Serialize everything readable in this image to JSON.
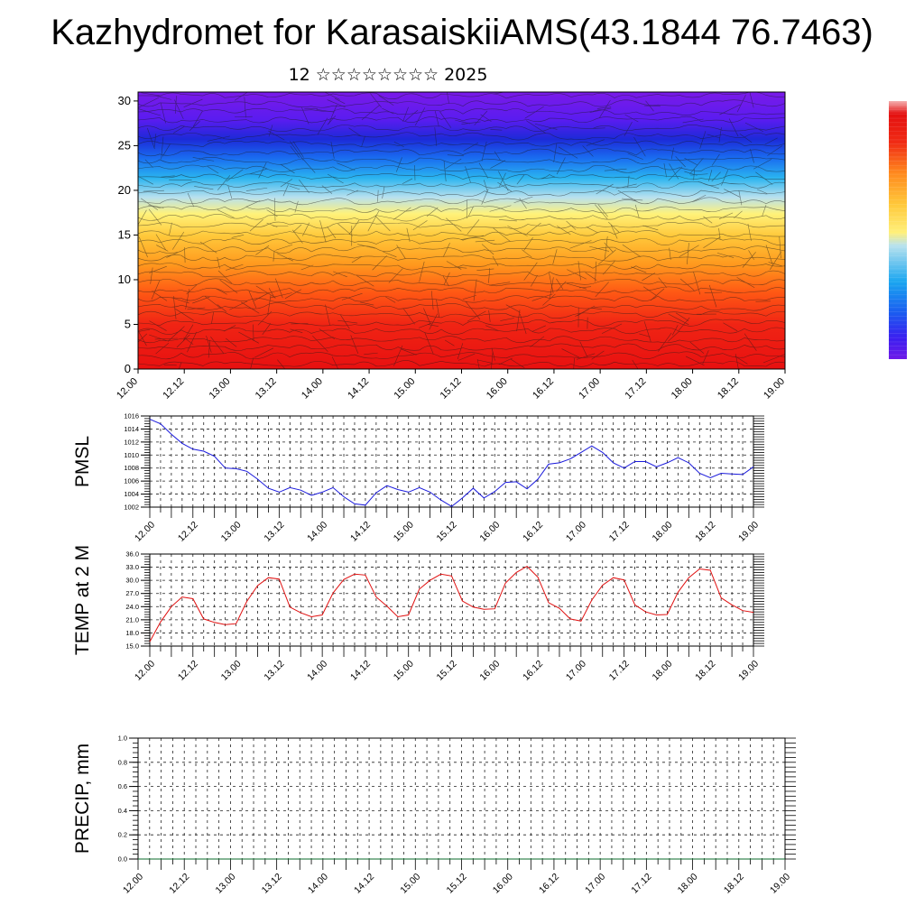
{
  "title": "Kazhydromet for KarasaiskiiAMS(43.1844 76.7463)",
  "subtitle": "12 ☆☆☆☆☆☆☆☆ 2025",
  "colors": {
    "pmsl_line": "#1a1adc",
    "temp_line": "#e01010",
    "precip_line": "#0a6b2a",
    "colorbar": [
      "#6f1ae8",
      "#3b1ef0",
      "#1a5cf0",
      "#1aa6f0",
      "#8fd2f0",
      "#fff07a",
      "#ffd23c",
      "#ffa51e",
      "#ff6a14",
      "#f02a14",
      "#e41010",
      "#f0a0a0"
    ]
  },
  "chart_data": [
    {
      "type": "heatmap",
      "x_ticks": [
        "12.00",
        "12.12",
        "13.00",
        "13.12",
        "14.00",
        "14.12",
        "15.00",
        "15.12",
        "16.00",
        "16.12",
        "17.00",
        "17.12",
        "18.00",
        "18.12",
        "19.00"
      ],
      "y_ticks": [
        "0",
        "5",
        "10",
        "15",
        "20",
        "25",
        "30"
      ],
      "ylim": [
        0,
        31
      ],
      "overlay": "wind-barbs",
      "colorbar": true
    },
    {
      "type": "line",
      "ylabel": "PMSL",
      "ylim": [
        1002,
        1016
      ],
      "y_ticks": [
        "1002",
        "1004",
        "1006",
        "1008",
        "1010",
        "1012",
        "1014",
        "1016"
      ],
      "x_ticks": [
        "12.00",
        "12.12",
        "13.00",
        "13.12",
        "14.00",
        "14.12",
        "15.00",
        "15.12",
        "16.00",
        "16.12",
        "17.00",
        "17.12",
        "18.00",
        "18.12",
        "19.00"
      ],
      "grid": true,
      "values": [
        1015.5,
        1014.8,
        1013.2,
        1011.8,
        1010.9,
        1010.6,
        1009.8,
        1008.0,
        1007.9,
        1007.5,
        1006.3,
        1004.9,
        1004.3,
        1005.0,
        1004.6,
        1003.8,
        1004.3,
        1005.0,
        1003.6,
        1002.5,
        1002.3,
        1004.2,
        1005.3,
        1004.7,
        1004.3,
        1005.0,
        1004.3,
        1003.1,
        1002.1,
        1003.4,
        1004.9,
        1003.4,
        1004.4,
        1005.8,
        1005.9,
        1004.8,
        1006.3,
        1008.6,
        1008.8,
        1009.4,
        1010.4,
        1011.4,
        1010.4,
        1008.8,
        1008.0,
        1009.0,
        1009.0,
        1008.2,
        1008.8,
        1009.6,
        1008.8,
        1007.2,
        1006.5,
        1007.2,
        1007.1,
        1007.0,
        1008.2
      ]
    },
    {
      "type": "line",
      "ylabel": "TEMP at 2 M",
      "ylim": [
        15,
        36
      ],
      "y_ticks": [
        "15.0",
        "18.0",
        "21.0",
        "24.0",
        "27.0",
        "30.0",
        "33.0",
        "36.0"
      ],
      "x_ticks": [
        "12.00",
        "12.12",
        "13.00",
        "13.12",
        "14.00",
        "14.12",
        "15.00",
        "15.12",
        "16.00",
        "16.12",
        "17.00",
        "17.12",
        "18.00",
        "18.12",
        "19.00"
      ],
      "grid": true,
      "values": [
        16.0,
        20.5,
        24.0,
        26.2,
        25.8,
        21.2,
        20.4,
        19.9,
        20.1,
        25.2,
        28.8,
        30.6,
        30.3,
        23.9,
        22.6,
        21.7,
        22.1,
        27.1,
        30.2,
        31.4,
        31.2,
        26.2,
        24.1,
        21.7,
        22.1,
        28.0,
        30.0,
        31.4,
        31.0,
        25.3,
        23.9,
        23.4,
        23.5,
        29.4,
        31.8,
        33.2,
        30.7,
        24.9,
        23.6,
        21.2,
        20.7,
        25.5,
        28.9,
        30.6,
        30.1,
        24.4,
        22.8,
        22.1,
        22.2,
        27.3,
        30.6,
        32.6,
        32.3,
        26.0,
        24.4,
        23.1,
        22.7
      ]
    },
    {
      "type": "line",
      "ylabel": "PRECIP, mm",
      "ylim": [
        0,
        1
      ],
      "y_ticks": [
        "0.0",
        "0.2",
        "0.4",
        "0.6",
        "0.8",
        "1.0"
      ],
      "x_ticks": [
        "12.00",
        "12.12",
        "13.00",
        "13.12",
        "14.00",
        "14.12",
        "15.00",
        "15.12",
        "16.00",
        "16.12",
        "17.00",
        "17.12",
        "18.00",
        "18.12",
        "19.00"
      ],
      "grid": true,
      "values": [
        0,
        0,
        0,
        0,
        0,
        0,
        0,
        0,
        0,
        0,
        0,
        0,
        0,
        0,
        0,
        0,
        0,
        0,
        0,
        0,
        0,
        0,
        0,
        0,
        0,
        0,
        0,
        0,
        0,
        0,
        0,
        0,
        0,
        0,
        0,
        0,
        0,
        0,
        0,
        0,
        0,
        0,
        0,
        0,
        0,
        0,
        0,
        0,
        0,
        0,
        0,
        0,
        0,
        0,
        0,
        0,
        0
      ]
    }
  ]
}
